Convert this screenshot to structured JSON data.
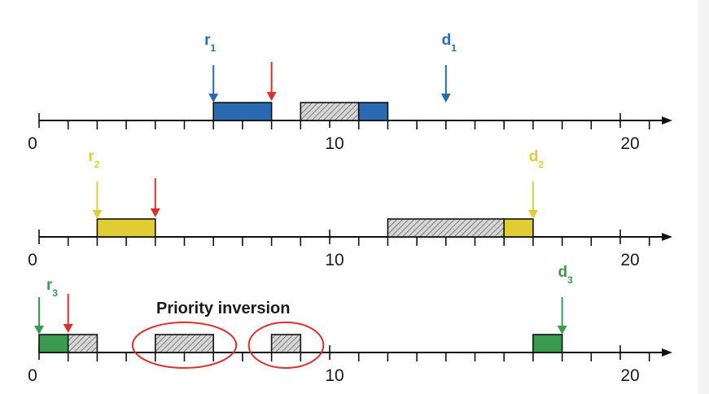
{
  "timeline": {
    "start": 0,
    "end": 21,
    "labels": [
      "0",
      "10",
      "20"
    ],
    "label_values": [
      0,
      10,
      20
    ]
  },
  "colors": {
    "task1": "#2a6ab3",
    "task2": "#e1cc36",
    "task3": "#3a9b50",
    "blocked_fill": "#cfcfcf",
    "preempt_arrow": "#d93030",
    "inversion_ellipse": "#d93030",
    "axis": "#111111"
  },
  "tasks": [
    {
      "id": "task1",
      "release_label": "r",
      "release_sub": "1",
      "release_time": 6,
      "deadline_label": "d",
      "deadline_sub": "1",
      "deadline_time": 14,
      "preempt_time": 8,
      "segments": [
        {
          "start": 6,
          "end": 8,
          "kind": "run"
        },
        {
          "start": 9,
          "end": 11,
          "kind": "blocked"
        },
        {
          "start": 11,
          "end": 12,
          "kind": "run"
        }
      ]
    },
    {
      "id": "task2",
      "release_label": "r",
      "release_sub": "2",
      "release_time": 2,
      "deadline_label": "d",
      "deadline_sub": "2",
      "deadline_time": 17,
      "preempt_time": 4,
      "segments": [
        {
          "start": 2,
          "end": 4,
          "kind": "run"
        },
        {
          "start": 12,
          "end": 16,
          "kind": "blocked"
        },
        {
          "start": 16,
          "end": 17,
          "kind": "run"
        }
      ]
    },
    {
      "id": "task3",
      "release_label": "r",
      "release_sub": "3",
      "release_time": 0,
      "deadline_label": "d",
      "deadline_sub": "3",
      "deadline_time": 18,
      "preempt_time": 1,
      "segments": [
        {
          "start": 0,
          "end": 1,
          "kind": "run"
        },
        {
          "start": 1,
          "end": 2,
          "kind": "blocked"
        },
        {
          "start": 4,
          "end": 6,
          "kind": "blocked"
        },
        {
          "start": 8,
          "end": 9,
          "kind": "blocked"
        },
        {
          "start": 17,
          "end": 18,
          "kind": "run"
        }
      ]
    }
  ],
  "annotation": {
    "text": "Priority inversion",
    "highlight_spans": [
      [
        4,
        6
      ],
      [
        8,
        9
      ]
    ]
  }
}
